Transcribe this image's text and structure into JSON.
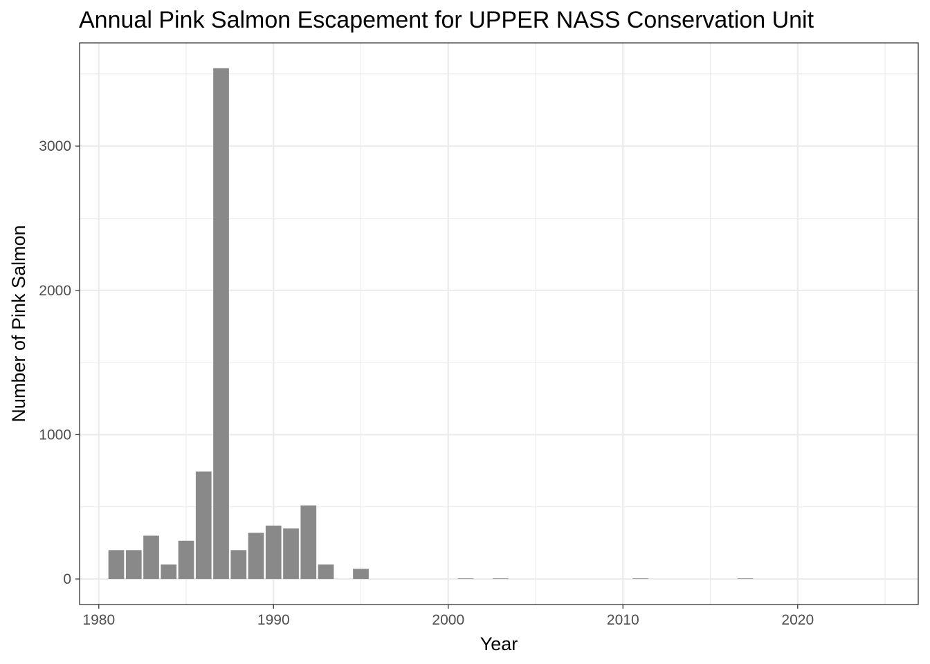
{
  "chart_data": {
    "type": "bar",
    "title": "Annual Pink Salmon Escapement for UPPER NASS Conservation Unit",
    "xlabel": "Year",
    "ylabel": "Number of Pink Salmon",
    "x": [
      1981,
      1982,
      1983,
      1984,
      1985,
      1986,
      1987,
      1988,
      1989,
      1990,
      1991,
      1992,
      1993,
      1995,
      2001,
      2003,
      2011,
      2017
    ],
    "values": [
      200,
      200,
      300,
      100,
      265,
      745,
      3540,
      200,
      320,
      370,
      350,
      510,
      100,
      70,
      2,
      3,
      3,
      3
    ],
    "xlim": [
      1978.9,
      2026.9
    ],
    "ylim": [
      -177,
      3715
    ],
    "x_ticks": [
      "1980",
      "1990",
      "2000",
      "2010",
      "2020"
    ],
    "x_minor_ticks": [
      1985,
      1995,
      2005,
      2015,
      2025
    ],
    "y_ticks": [
      "0",
      "1000",
      "2000",
      "3000"
    ],
    "y_minor_ticks": [
      500,
      1500,
      2500,
      3500
    ],
    "bar_color": "#898989",
    "grid": true,
    "grid_color": "#ebebeb",
    "legend": "none"
  }
}
